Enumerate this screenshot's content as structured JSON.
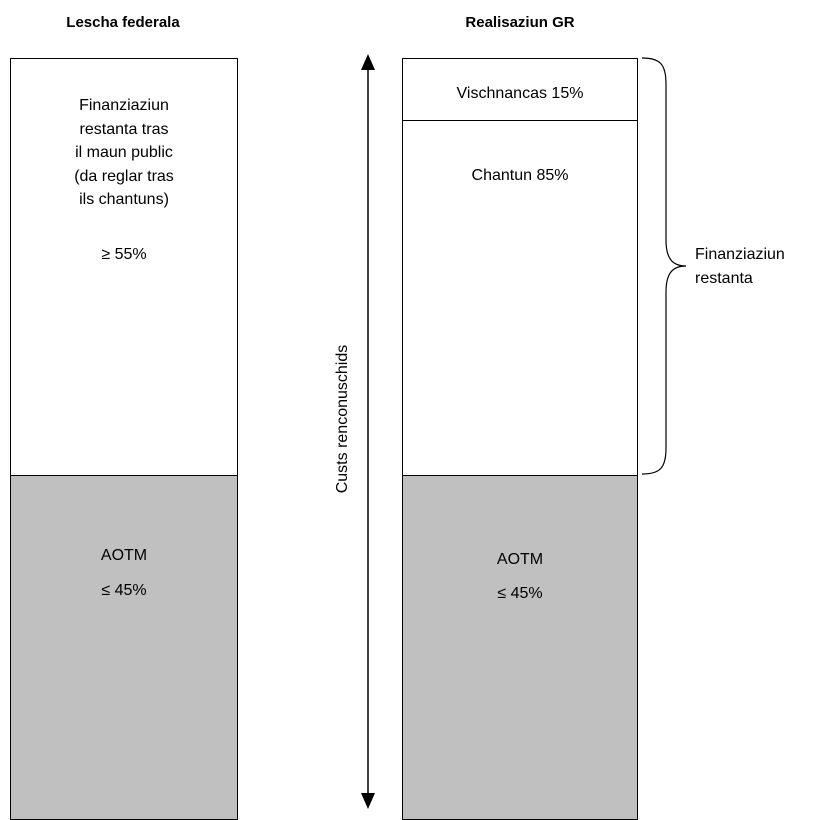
{
  "left_column": {
    "title": "Lescha federala",
    "upper_lines": [
      "Finanziaziun",
      "restanta tras",
      "il maun public",
      "(da reglar tras",
      "ils chantuns)"
    ],
    "upper_percent": "≥ 55%",
    "lower_label": "AOTM",
    "lower_percent": "≤ 45%"
  },
  "right_column": {
    "title": "Realisaziun GR",
    "top_label": "Vischnancas 15%",
    "middle_label": "Chantun 85%",
    "lower_label": "AOTM",
    "lower_percent": "≤ 45%"
  },
  "axis_label": "Custs renconuschids",
  "brace_label_lines": [
    "Finanziaziun",
    "restanta"
  ],
  "colors": {
    "grey_fill": "#c0c0c0",
    "outline": "#000000",
    "background": "#ffffff"
  }
}
